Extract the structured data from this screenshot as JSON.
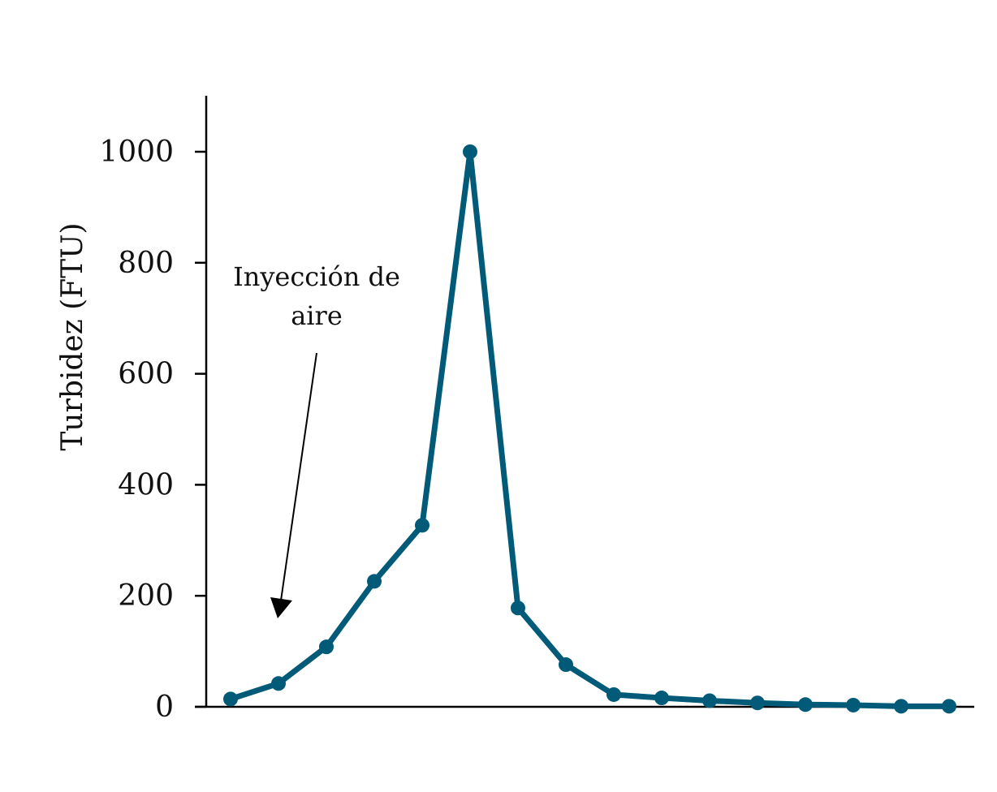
{
  "chart_data": {
    "type": "line",
    "title": "",
    "xlabel": "",
    "ylabel": "Turbidez (FTU)",
    "ylim": [
      0,
      1100
    ],
    "yticks": [
      0,
      200,
      400,
      600,
      800,
      1000
    ],
    "ytick_labels": [
      "0",
      "200",
      "400",
      "600",
      "800",
      "1000"
    ],
    "x": [
      1,
      2,
      3,
      4,
      5,
      6,
      7,
      8,
      9,
      10,
      11,
      12,
      13,
      14,
      15,
      16
    ],
    "series": [
      {
        "values": [
          14,
          42,
          108,
          226,
          327,
          1000,
          178,
          76,
          22,
          16,
          11,
          7,
          4,
          3,
          1,
          1
        ],
        "color": "#005a78"
      }
    ],
    "annotation": {
      "line1": "Inyección de",
      "line2": "aire"
    },
    "grid": false,
    "legend": "none"
  }
}
